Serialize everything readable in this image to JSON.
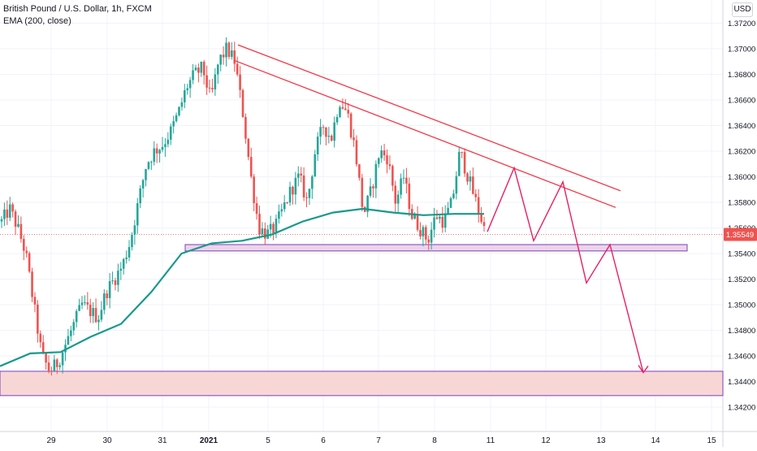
{
  "legend": {
    "symbol_line": "British Pound / U.S. Dollar, 1h, FXCM",
    "indicator_line": "EMA (200, close)"
  },
  "currency": "USD",
  "colors": {
    "up": "#26a69a",
    "down": "#ef5350",
    "ema": "#18998b",
    "trendline": "#f23645",
    "projection": "#e91e63",
    "zone_fill": "#f8cfcf",
    "zone_border": "#7b3fbf",
    "price_tag": "#ef5350",
    "grid": "#f0f3fa"
  },
  "chart_data": {
    "type": "candlestick",
    "symbol": "GBPUSD",
    "timeframe": "1h",
    "ylim": [
      1.341,
      1.373
    ],
    "y_ticks": [
      "1.37200",
      "1.37000",
      "1.36800",
      "1.36600",
      "1.36400",
      "1.36200",
      "1.36000",
      "1.35800",
      "1.35600",
      "1.35400",
      "1.35200",
      "1.35000",
      "1.34800",
      "1.34600",
      "1.34400",
      "1.34200"
    ],
    "x_ticks": [
      "29",
      "30",
      "31",
      "2021",
      "5",
      "6",
      "7",
      "8",
      "11",
      "12",
      "13",
      "14",
      "15"
    ],
    "last_price": "1.35549",
    "ohlc_path": [
      1.3565,
      1.3575,
      1.356,
      1.354,
      1.35,
      1.346,
      1.3448,
      1.3455,
      1.347,
      1.3485,
      1.35,
      1.3495,
      1.349,
      1.351,
      1.352,
      1.353,
      1.355,
      1.358,
      1.361,
      1.362,
      1.3625,
      1.3635,
      1.365,
      1.367,
      1.368,
      1.3685,
      1.366,
      1.369,
      1.37,
      1.369,
      1.365,
      1.36,
      1.356,
      1.3555,
      1.356,
      1.3575,
      1.359,
      1.36,
      1.358,
      1.362,
      1.364,
      1.363,
      1.366,
      1.365,
      1.362,
      1.357,
      1.359,
      1.362,
      1.3615,
      1.358,
      1.36,
      1.357,
      1.356,
      1.355,
      1.357,
      1.3565,
      1.358,
      1.362,
      1.36,
      1.358,
      1.356
    ],
    "ema_200": [
      1.3452,
      1.3462,
      1.3463,
      1.3475,
      1.3485,
      1.351,
      1.354,
      1.3548,
      1.355,
      1.3555,
      1.3565,
      1.3572,
      1.3575,
      1.3572,
      1.357,
      1.3571,
      1.3571
    ],
    "trendlines": [
      {
        "from": [
          "Jan 4",
          1.3703
        ],
        "to": [
          "Jan 13",
          1.3589
        ]
      },
      {
        "from": [
          "Jan 4",
          1.3691
        ],
        "to": [
          "Jan 13",
          1.3576
        ]
      }
    ],
    "support_zone": [
      1.3542,
      1.3547
    ],
    "demand_zone": [
      1.3429,
      1.3448
    ],
    "projection_path": [
      1.3557,
      1.3607,
      1.355,
      1.3596,
      1.3517,
      1.3547,
      1.3447
    ]
  }
}
